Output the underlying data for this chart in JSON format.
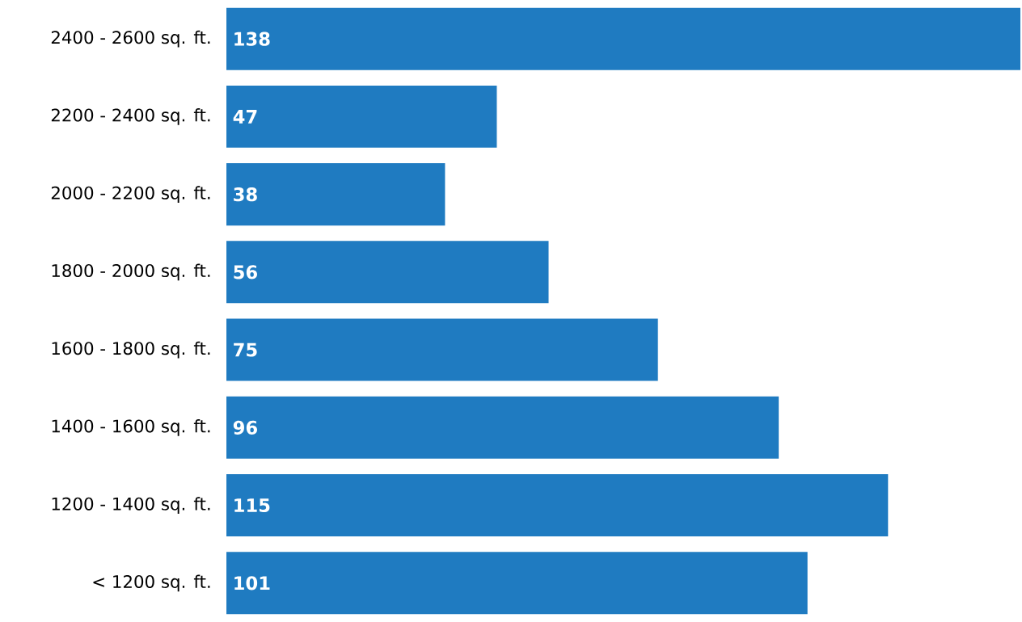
{
  "chart_data": {
    "type": "bar",
    "orientation": "horizontal",
    "categories": [
      "2400 - 2600 sq. ft.",
      "2200 - 2400 sq. ft.",
      "2000 - 2200 sq. ft.",
      "1800 - 2000 sq. ft.",
      "1600 - 1800 sq. ft.",
      "1400 - 1600 sq. ft.",
      "1200 - 1400 sq. ft.",
      "< 1200 sq. ft."
    ],
    "values": [
      138,
      47,
      38,
      56,
      75,
      96,
      115,
      101
    ],
    "color": "#1f7bc1",
    "xlim": [
      0,
      138
    ],
    "data_labels": true
  }
}
